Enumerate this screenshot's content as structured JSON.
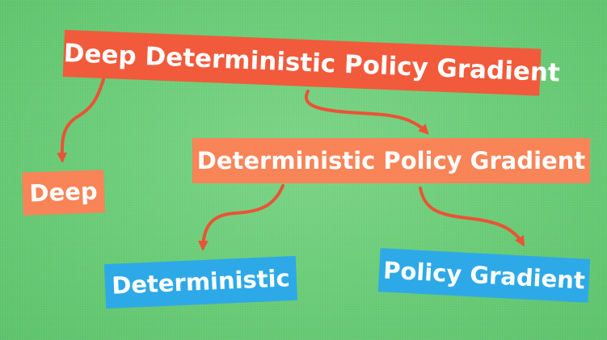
{
  "colors": {
    "background": "#6dcf7a",
    "top_box": "#f25a3c",
    "middle_box": "#f98458",
    "leaf_box": "#2ea9e8",
    "arrow": "#ec5236",
    "text": "#ffffff"
  },
  "nodes": {
    "root": {
      "label": "Deep Deterministic Policy Gradient"
    },
    "split": {
      "label": "Deterministic Policy Gradient"
    },
    "deep": {
      "label": "Deep"
    },
    "deterministic": {
      "label": "Deterministic"
    },
    "policy_gradient": {
      "label": "Policy Gradient"
    }
  },
  "edges": [
    {
      "from": "root",
      "to": "deep"
    },
    {
      "from": "root",
      "to": "split"
    },
    {
      "from": "split",
      "to": "deterministic"
    },
    {
      "from": "split",
      "to": "policy_gradient"
    }
  ]
}
